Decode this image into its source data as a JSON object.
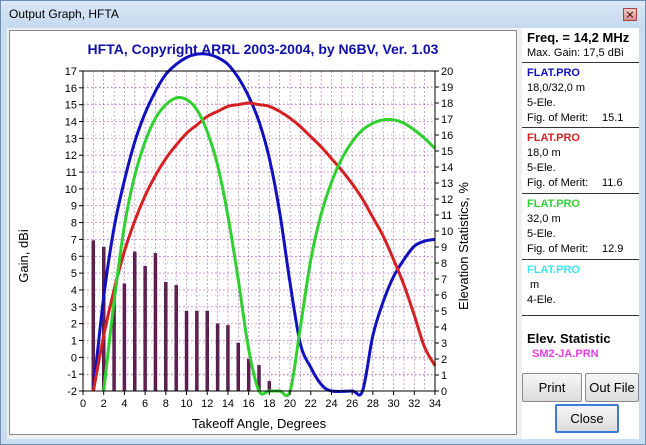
{
  "window": {
    "title": "Output Graph, HFTA",
    "close_glyph": "×"
  },
  "chart_data": {
    "type": "line",
    "title": "HFTA, Copyright ARRL 2003-2004, by N6BV, Ver. 1.03",
    "xlabel": "Takeoff Angle, Degrees",
    "ylabel": "Gain, dBi",
    "y2label": "Elevation Statistics, %",
    "xlim": [
      0,
      34
    ],
    "ylim": [
      -2,
      17
    ],
    "y2lim": [
      0,
      20
    ],
    "x_ticks": [
      0,
      2,
      4,
      6,
      8,
      10,
      12,
      14,
      16,
      18,
      20,
      22,
      24,
      26,
      28,
      30,
      32,
      34
    ],
    "y_ticks": [
      -2,
      -1,
      0,
      1,
      2,
      3,
      4,
      5,
      6,
      7,
      8,
      9,
      10,
      11,
      12,
      13,
      14,
      15,
      16,
      17
    ],
    "y2_ticks": [
      0,
      1,
      2,
      3,
      4,
      5,
      6,
      7,
      8,
      9,
      10,
      11,
      12,
      13,
      14,
      15,
      16,
      17,
      18,
      19,
      20
    ],
    "grid": true,
    "series": [
      {
        "name": "FLAT.PRO 18,0/32,0 m",
        "color": "#1010c0",
        "x": [
          1,
          2,
          3,
          4,
          5,
          6,
          7,
          8,
          9,
          10,
          11,
          12,
          13,
          14,
          15,
          16,
          17,
          18,
          19,
          20,
          21,
          22,
          23,
          24,
          26,
          27,
          28,
          29,
          30,
          31,
          32,
          33,
          34
        ],
        "y": [
          -2,
          3.6,
          7.7,
          10.5,
          12.8,
          14.5,
          15.8,
          16.8,
          17.4,
          17.8,
          18,
          18,
          17.8,
          17.4,
          16.6,
          15.5,
          14,
          11.8,
          8.6,
          4.4,
          0.8,
          -0.6,
          -1.6,
          -2,
          -2,
          -2,
          1.3,
          3.3,
          4.8,
          5.8,
          6.6,
          6.9,
          7
        ]
      },
      {
        "name": "FLAT.PRO 18,0 m",
        "color": "#d42020",
        "x": [
          1,
          2,
          3,
          4,
          5,
          6,
          7,
          8,
          9,
          10,
          11,
          12,
          13,
          14,
          15,
          16,
          17,
          18,
          19,
          20,
          21,
          22,
          23,
          24,
          25,
          26,
          27,
          28,
          29,
          30,
          31,
          32,
          33,
          34
        ],
        "y": [
          -2,
          1.3,
          4,
          6.3,
          8.1,
          9.6,
          10.8,
          11.8,
          12.6,
          13.3,
          13.8,
          14.3,
          14.6,
          14.9,
          15,
          15.1,
          15,
          14.9,
          14.6,
          14.2,
          13.7,
          13.1,
          12.5,
          11.8,
          11.1,
          10.3,
          9.4,
          8.3,
          7.2,
          5.8,
          4.3,
          2.5,
          0.6,
          -0.5
        ]
      },
      {
        "name": "FLAT.PRO 32,0 m",
        "color": "#30d030",
        "x": [
          2,
          3,
          4,
          5,
          6,
          7,
          8,
          9,
          10,
          11,
          12,
          13,
          14,
          15,
          16,
          17,
          18,
          19,
          20,
          21,
          22,
          23,
          24,
          25,
          26,
          27,
          28,
          29,
          30,
          31,
          32,
          33,
          34
        ],
        "y": [
          -2,
          3.3,
          7.8,
          10.8,
          12.8,
          14.2,
          15,
          15.4,
          15.3,
          14.7,
          13.4,
          11.4,
          8.4,
          4.6,
          0.5,
          -2,
          -2,
          -2,
          -2,
          1.8,
          5.8,
          8.5,
          10.4,
          11.8,
          12.8,
          13.5,
          13.9,
          14.1,
          14.1,
          13.9,
          13.5,
          13,
          12.4
        ]
      }
    ],
    "bars": {
      "name": "Elev. Statistic SM2-JA.PRN",
      "axis": "y2",
      "x": [
        1,
        2,
        3,
        4,
        5,
        6,
        7,
        8,
        9,
        10,
        11,
        12,
        13,
        14,
        15,
        16,
        17,
        18
      ],
      "values": [
        9.4,
        9,
        5.7,
        6.7,
        8.7,
        7.8,
        8.6,
        6.8,
        6.6,
        5,
        5,
        5,
        4.2,
        4.1,
        3,
        2,
        1.6,
        0.6
      ]
    }
  },
  "panel": {
    "freq": "Freq. = 14,2 MHz",
    "max_gain": "Max. Gain: 17,5 dBi",
    "files": [
      {
        "name": "FLAT.PRO",
        "color": "#1010c0",
        "height": "18,0/32,0 m",
        "ele": "5-Ele.",
        "fom_label": "Fig. of Merit:",
        "fom": "15.1"
      },
      {
        "name": "FLAT.PRO",
        "color": "#d42020",
        "height": "18,0 m",
        "ele": "5-Ele.",
        "fom_label": "Fig. of Merit:",
        "fom": "11.6"
      },
      {
        "name": "FLAT.PRO",
        "color": "#30d030",
        "height": "32,0 m",
        "ele": "5-Ele.",
        "fom_label": "Fig. of Merit:",
        "fom": "12.9"
      },
      {
        "name": "FLAT.PRO",
        "color": "#40e0f0",
        "height": " m",
        "ele": "4-Ele.",
        "fom_label": "",
        "fom": ""
      }
    ],
    "elev_title": "Elev. Statistic",
    "elev_file": "SM2-JA.PRN",
    "elev_color": "#e040e0"
  },
  "buttons": {
    "print": "Print",
    "out_file": "Out File",
    "close": "Close"
  }
}
